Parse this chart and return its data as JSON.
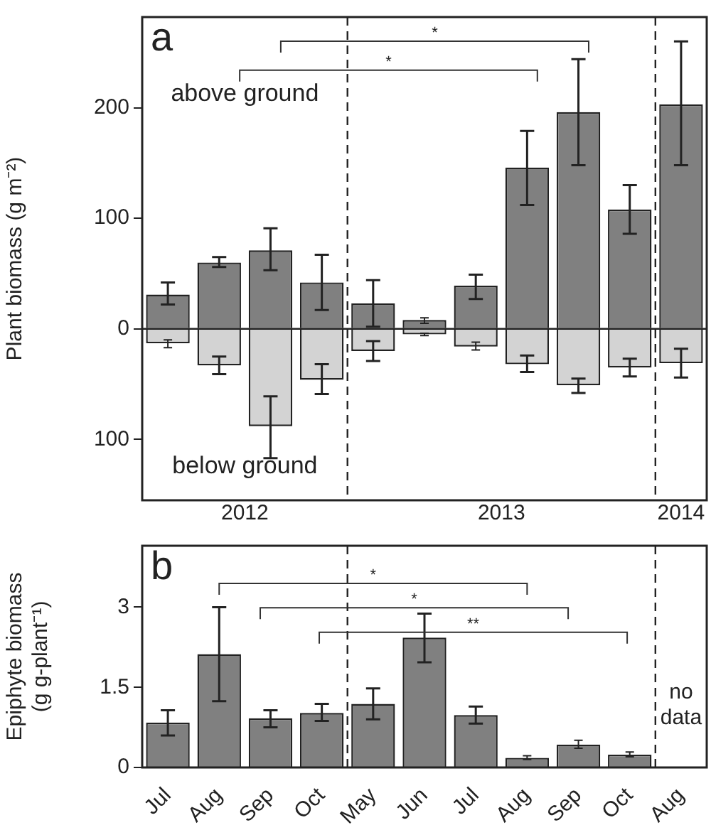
{
  "chart_data": [
    {
      "type": "bar",
      "title": "a",
      "ylabel": "Plant biomass (g m⁻²)",
      "stacked": true,
      "tick_labels": "y",
      "grid": false,
      "legend": false,
      "categories": [
        null,
        null,
        null,
        null,
        null,
        null,
        null,
        null,
        null,
        null,
        null
      ],
      "series": [
        {
          "color": "#808080",
          "values": [
            31,
            60,
            71,
            42,
            23,
            8,
            39,
            146,
            196,
            108,
            203
          ],
          "errors": [
            [
              22,
              42
            ],
            [
              56,
              65
            ],
            [
              53,
              91
            ],
            [
              17,
              67
            ],
            [
              2,
              44
            ],
            [
              5,
              10
            ],
            [
              27,
              49
            ],
            [
              112,
              179
            ],
            [
              148,
              244
            ],
            [
              86,
              130
            ],
            [
              148,
              260
            ]
          ]
        },
        {
          "color": "#d3d3d3",
          "values": [
            -13,
            -33,
            -88,
            -46,
            -20,
            -5,
            -16,
            -32,
            -51,
            -35,
            -31
          ],
          "errors": [
            [
              -17,
              -10
            ],
            [
              -41,
              -25
            ],
            [
              -117,
              -61
            ],
            [
              -59,
              -32
            ],
            [
              -29,
              -11
            ],
            [
              -6,
              -4
            ],
            [
              -19,
              -12
            ],
            [
              -39,
              -24
            ],
            [
              -58,
              -45
            ],
            [
              -43,
              -27
            ],
            [
              -44,
              -18
            ]
          ]
        }
      ],
      "ylim": [
        -155,
        282
      ],
      "yticks": [
        {
          "value": -100,
          "label": "100"
        },
        0,
        100,
        200
      ],
      "ref_lines": [
        {
          "axis": "y",
          "value": 0,
          "line_style": "solid"
        }
      ],
      "annotations": [
        "above ground",
        "below ground",
        "2012",
        "2013",
        "2014",
        "*",
        "*"
      ]
    },
    {
      "type": "bar",
      "title": "b",
      "ylabel": "Epiphyte biomass (g g-plant⁻¹)",
      "grid": false,
      "legend": false,
      "categories": [
        "Jul",
        "Aug",
        "Sep",
        "Oct",
        "May",
        "Jun",
        "Jul",
        "Aug",
        "Sep",
        "Oct",
        "Aug"
      ],
      "series": [
        {
          "color": "#808080",
          "values": [
            0.84,
            2.12,
            0.92,
            1.02,
            1.19,
            2.43,
            0.98,
            0.18,
            0.43,
            0.24,
            null
          ],
          "errors": [
            [
              0.6,
              1.07
            ],
            [
              1.24,
              3.0
            ],
            [
              0.75,
              1.07
            ],
            [
              0.87,
              1.19
            ],
            [
              0.9,
              1.48
            ],
            [
              1.97,
              2.88
            ],
            [
              0.82,
              1.14
            ],
            [
              0.15,
              0.22
            ],
            [
              0.36,
              0.51
            ],
            [
              0.2,
              0.29
            ],
            null
          ]
        }
      ],
      "ylim": [
        0,
        4.15
      ],
      "yticks": [
        0,
        1.5,
        3
      ],
      "annotations": [
        "no data",
        "*",
        "*",
        "**"
      ]
    }
  ]
}
